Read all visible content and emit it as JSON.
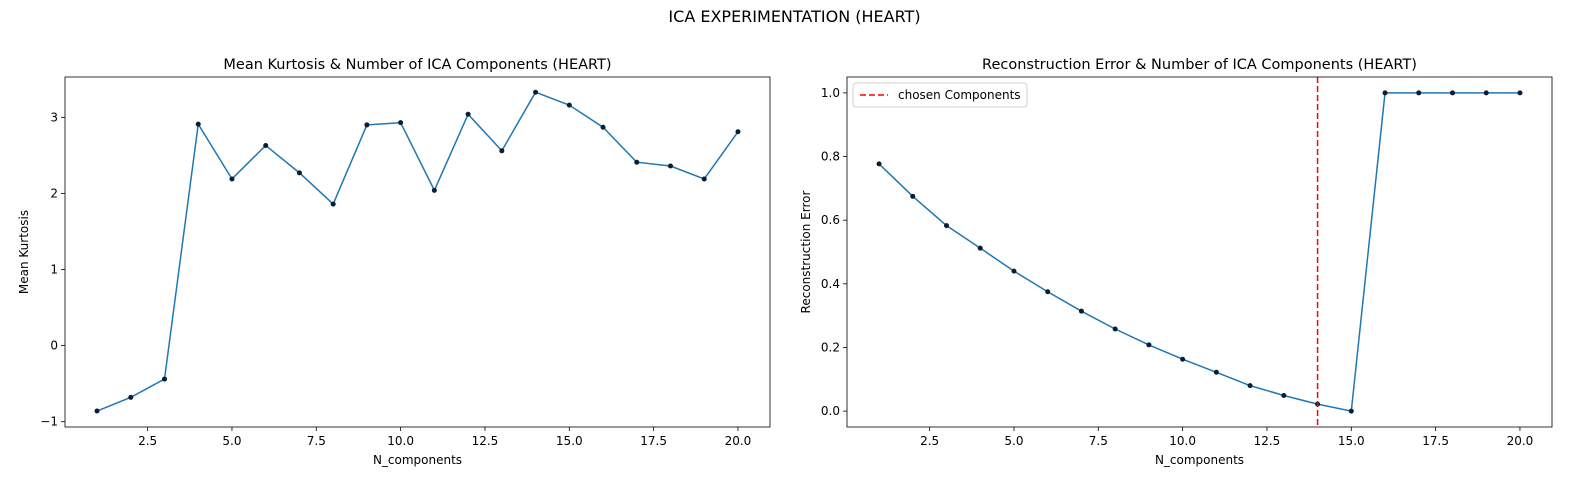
{
  "suptitle": "ICA EXPERIMENTATION (HEART)",
  "colors": {
    "line": "#1f77b4",
    "marker": "#0b1c33",
    "vline": "#ff0000"
  },
  "chart_data": [
    {
      "type": "line",
      "title": "Mean Kurtosis & Number of ICA Components (HEART)",
      "xlabel": "N_components",
      "ylabel": "Mean Kurtosis",
      "x": [
        1,
        2,
        3,
        4,
        5,
        6,
        7,
        8,
        9,
        10,
        11,
        12,
        13,
        14,
        15,
        16,
        17,
        18,
        19,
        20
      ],
      "series": [
        {
          "values": [
            -0.86,
            -0.68,
            -0.44,
            2.91,
            2.19,
            2.63,
            2.27,
            1.86,
            2.9,
            2.93,
            2.04,
            3.04,
            2.56,
            3.33,
            3.16,
            2.87,
            2.41,
            2.36,
            2.19,
            2.81
          ]
        }
      ],
      "xlim": [
        0.05,
        20.95
      ],
      "ylim": [
        -1.07,
        3.53
      ],
      "xticks": [
        2.5,
        5.0,
        7.5,
        10.0,
        12.5,
        15.0,
        17.5,
        20.0
      ],
      "xtick_labels": [
        "2.5",
        "5.0",
        "7.5",
        "10.0",
        "12.5",
        "15.0",
        "17.5",
        "20.0"
      ],
      "yticks": [
        -1,
        0,
        1,
        2,
        3
      ],
      "ytick_labels": [
        "−1",
        "0",
        "1",
        "2",
        "3"
      ],
      "grid": false
    },
    {
      "type": "line",
      "title": "Reconstruction Error & Number of ICA Components (HEART)",
      "xlabel": "N_components",
      "ylabel": "Reconstruction Error",
      "x": [
        1,
        2,
        3,
        4,
        5,
        6,
        7,
        8,
        9,
        10,
        11,
        12,
        13,
        14,
        15,
        16,
        17,
        18,
        19,
        20
      ],
      "series": [
        {
          "values": [
            0.777,
            0.675,
            0.583,
            0.512,
            0.44,
            0.375,
            0.314,
            0.258,
            0.208,
            0.163,
            0.122,
            0.08,
            0.049,
            0.022,
            0.0,
            1.0,
            1.0,
            1.0,
            1.0,
            1.0
          ]
        }
      ],
      "vline": {
        "x": 14,
        "label": "chosen Components",
        "style": "dashed"
      },
      "legend": {
        "position": "top-left",
        "entries": [
          "chosen Components"
        ]
      },
      "xlim": [
        0.05,
        20.95
      ],
      "ylim": [
        -0.05,
        1.05
      ],
      "xticks": [
        2.5,
        5.0,
        7.5,
        10.0,
        12.5,
        15.0,
        17.5,
        20.0
      ],
      "xtick_labels": [
        "2.5",
        "5.0",
        "7.5",
        "10.0",
        "12.5",
        "15.0",
        "17.5",
        "20.0"
      ],
      "yticks": [
        0.0,
        0.2,
        0.4,
        0.6,
        0.8,
        1.0
      ],
      "ytick_labels": [
        "0.0",
        "0.2",
        "0.4",
        "0.6",
        "0.8",
        "1.0"
      ],
      "grid": false
    }
  ]
}
